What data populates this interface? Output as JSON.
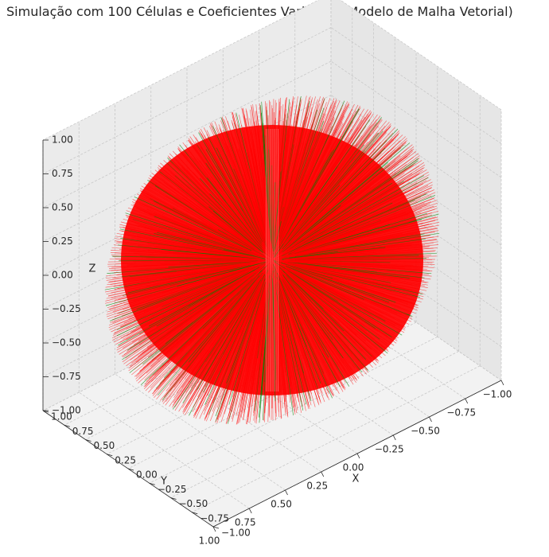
{
  "chart_data": {
    "type": "3d-quiver",
    "title": "Simulação com 100 Células e Coeficientes Variáveis (Modelo de Malha Vetorial)",
    "xlabel": "X",
    "ylabel": "Y",
    "zlabel": "Z",
    "xlim": [
      -1.0,
      1.0
    ],
    "ylim": [
      -1.0,
      1.0
    ],
    "zlim": [
      -1.0,
      1.0
    ],
    "x_ticks": [
      "−1.00",
      "−0.75",
      "−0.50",
      "−0.25",
      "0.00",
      "0.25",
      "0.50",
      "0.75",
      "1.00"
    ],
    "y_ticks": [
      "−1.00",
      "−0.75",
      "−0.50",
      "−0.25",
      "0.00",
      "0.25",
      "0.50",
      "0.75",
      "1.00"
    ],
    "z_ticks": [
      "−1.00",
      "−0.75",
      "−0.50",
      "−0.25",
      "0.00",
      "0.25",
      "0.50",
      "0.75",
      "1.00"
    ],
    "grid": true,
    "surface": "sphere",
    "sphere_radius": 1.0,
    "cells": 100,
    "series": [
      {
        "color": "#ff0000"
      },
      {
        "color": "#008000"
      }
    ]
  }
}
